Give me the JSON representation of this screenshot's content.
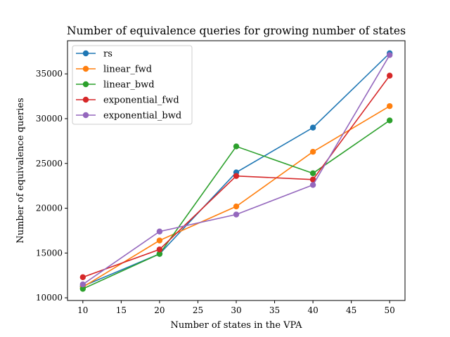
{
  "chart_data": {
    "type": "line",
    "title": "Number of equivalence queries for growing number of states",
    "xlabel": "Number of states in the VPA",
    "ylabel": "Number of equivalence queries",
    "x": [
      10,
      20,
      30,
      40,
      50
    ],
    "xlim": [
      8,
      52
    ],
    "ylim": [
      9700,
      38700
    ],
    "xticks": [
      10,
      15,
      20,
      25,
      30,
      35,
      40,
      45,
      50
    ],
    "yticks": [
      10000,
      15000,
      20000,
      25000,
      30000,
      35000
    ],
    "grid": false,
    "legend_position": "top-left",
    "series": [
      {
        "name": "rs",
        "color": "#1f77b4",
        "values": [
          11300,
          14900,
          24000,
          29000,
          37300
        ]
      },
      {
        "name": "linear_fwd",
        "color": "#ff7f0e",
        "values": [
          11200,
          16400,
          20200,
          26300,
          31400
        ]
      },
      {
        "name": "linear_bwd",
        "color": "#2ca02c",
        "values": [
          11000,
          14900,
          26900,
          23900,
          29800
        ]
      },
      {
        "name": "exponential_fwd",
        "color": "#d62728",
        "values": [
          12300,
          15400,
          23600,
          23200,
          34800
        ]
      },
      {
        "name": "exponential_bwd",
        "color": "#9467bd",
        "values": [
          11500,
          17400,
          19300,
          22600,
          37100
        ]
      }
    ]
  }
}
